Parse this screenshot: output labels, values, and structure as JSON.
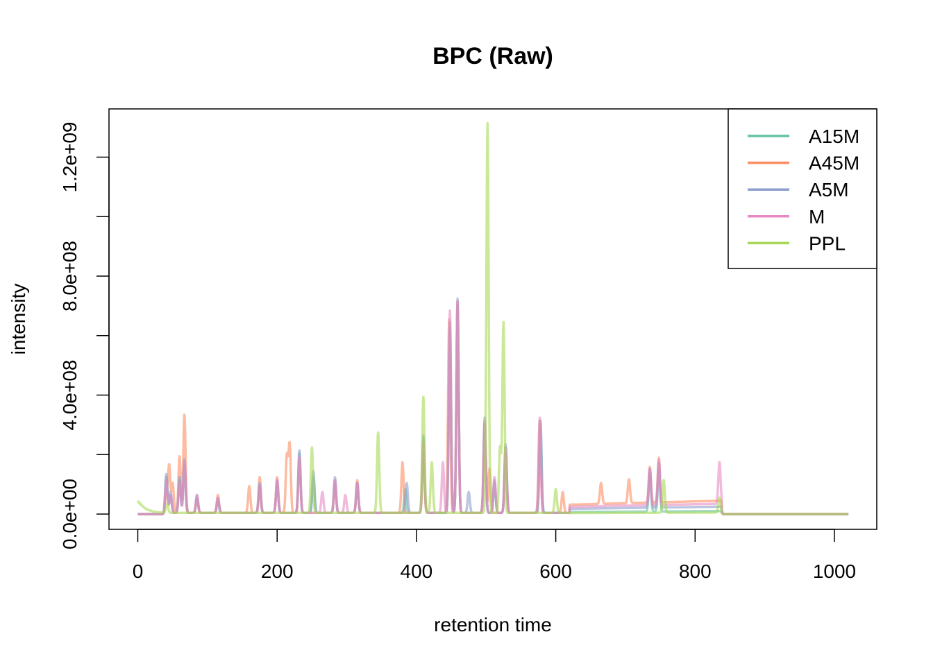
{
  "chart_data": {
    "type": "line",
    "title": "BPC (Raw)",
    "xlabel": "retention time",
    "ylabel": "intensity",
    "xlim": [
      0,
      1020
    ],
    "ylim": [
      0,
      1330000000.0
    ],
    "x_ticks": [
      0,
      200,
      400,
      600,
      800,
      1000
    ],
    "x_tick_labels": [
      "0",
      "200",
      "400",
      "600",
      "800",
      "1000"
    ],
    "y_ticks": [
      0,
      200000000,
      400000000,
      600000000,
      800000000,
      1000000000,
      1200000000
    ],
    "y_tick_labels": [
      "0.0e+00",
      "",
      "4.0e+08",
      "",
      "8.0e+08",
      "",
      "1.2e+09"
    ],
    "grid": false,
    "legend_position": "top-right",
    "series": [
      {
        "name": "A15M",
        "color": "#66C2A5",
        "start": 35,
        "end": 845,
        "plateau": [
          620,
          838,
          10000000
        ],
        "peaks": [
          [
            41,
            120000000
          ],
          [
            47,
            60000000
          ],
          [
            60,
            110000000
          ],
          [
            67,
            160000000
          ],
          [
            85,
            50000000
          ],
          [
            115,
            40000000
          ],
          [
            175,
            90000000
          ],
          [
            200,
            100000000
          ],
          [
            232,
            200000000
          ],
          [
            252,
            120000000
          ],
          [
            283,
            110000000
          ],
          [
            315,
            100000000
          ],
          [
            384,
            80000000
          ],
          [
            410,
            250000000
          ],
          [
            448,
            620000000
          ],
          [
            459,
            700000000
          ],
          [
            498,
            300000000
          ],
          [
            512,
            100000000
          ],
          [
            528,
            220000000
          ],
          [
            578,
            300000000
          ],
          [
            735,
            130000000
          ],
          [
            748,
            140000000
          ]
        ]
      },
      {
        "name": "A45M",
        "color": "#FC8D62",
        "start": 35,
        "end": 845,
        "plateau": [
          620,
          838,
          45000000
        ],
        "peaks": [
          [
            41,
            70000000
          ],
          [
            45,
            160000000
          ],
          [
            50,
            100000000
          ],
          [
            60,
            190000000
          ],
          [
            67,
            330000000
          ],
          [
            85,
            50000000
          ],
          [
            115,
            60000000
          ],
          [
            160,
            90000000
          ],
          [
            175,
            120000000
          ],
          [
            200,
            120000000
          ],
          [
            214,
            190000000
          ],
          [
            218,
            230000000
          ],
          [
            232,
            180000000
          ],
          [
            283,
            100000000
          ],
          [
            315,
            110000000
          ],
          [
            380,
            170000000
          ],
          [
            410,
            200000000
          ],
          [
            447,
            650000000
          ],
          [
            459,
            710000000
          ],
          [
            498,
            300000000
          ],
          [
            505,
            150000000
          ],
          [
            528,
            200000000
          ],
          [
            577,
            310000000
          ],
          [
            610,
            70000000
          ],
          [
            665,
            70000000
          ],
          [
            705,
            80000000
          ],
          [
            735,
            120000000
          ],
          [
            748,
            150000000
          ]
        ]
      },
      {
        "name": "A5M",
        "color": "#8DA0CB",
        "start": 35,
        "end": 845,
        "plateau": [
          620,
          838,
          25000000
        ],
        "peaks": [
          [
            41,
            130000000
          ],
          [
            47,
            70000000
          ],
          [
            60,
            120000000
          ],
          [
            67,
            180000000
          ],
          [
            85,
            60000000
          ],
          [
            115,
            50000000
          ],
          [
            175,
            100000000
          ],
          [
            200,
            110000000
          ],
          [
            232,
            210000000
          ],
          [
            252,
            140000000
          ],
          [
            283,
            120000000
          ],
          [
            315,
            100000000
          ],
          [
            386,
            100000000
          ],
          [
            410,
            260000000
          ],
          [
            448,
            640000000
          ],
          [
            459,
            720000000
          ],
          [
            475,
            70000000
          ],
          [
            498,
            320000000
          ],
          [
            512,
            110000000
          ],
          [
            528,
            230000000
          ],
          [
            578,
            310000000
          ],
          [
            735,
            130000000
          ],
          [
            748,
            150000000
          ]
        ]
      },
      {
        "name": "M",
        "color": "#E78AC3",
        "start": 35,
        "end": 845,
        "plateau": [
          620,
          838,
          35000000
        ],
        "peaks": [
          [
            41,
            110000000
          ],
          [
            47,
            60000000
          ],
          [
            60,
            100000000
          ],
          [
            67,
            170000000
          ],
          [
            85,
            60000000
          ],
          [
            115,
            50000000
          ],
          [
            175,
            90000000
          ],
          [
            200,
            110000000
          ],
          [
            232,
            190000000
          ],
          [
            265,
            70000000
          ],
          [
            283,
            110000000
          ],
          [
            298,
            60000000
          ],
          [
            315,
            100000000
          ],
          [
            410,
            240000000
          ],
          [
            438,
            170000000
          ],
          [
            448,
            680000000
          ],
          [
            459,
            710000000
          ],
          [
            498,
            310000000
          ],
          [
            512,
            120000000
          ],
          [
            528,
            220000000
          ],
          [
            577,
            320000000
          ],
          [
            735,
            120000000
          ],
          [
            748,
            150000000
          ],
          [
            835,
            140000000
          ]
        ]
      },
      {
        "name": "PPL",
        "color": "#A6D854",
        "start": 0,
        "end": 845,
        "initial_decay": [
          0,
          40,
          45000000
        ],
        "plateau": [
          620,
          838,
          5000000
        ],
        "peaks": [
          [
            42,
            30000000
          ],
          [
            250,
            220000000
          ],
          [
            345,
            270000000
          ],
          [
            410,
            390000000
          ],
          [
            422,
            170000000
          ],
          [
            502,
            1310000000
          ],
          [
            520,
            220000000
          ],
          [
            525,
            640000000
          ],
          [
            600,
            80000000
          ],
          [
            755,
            110000000
          ],
          [
            835,
            50000000
          ]
        ]
      }
    ]
  }
}
